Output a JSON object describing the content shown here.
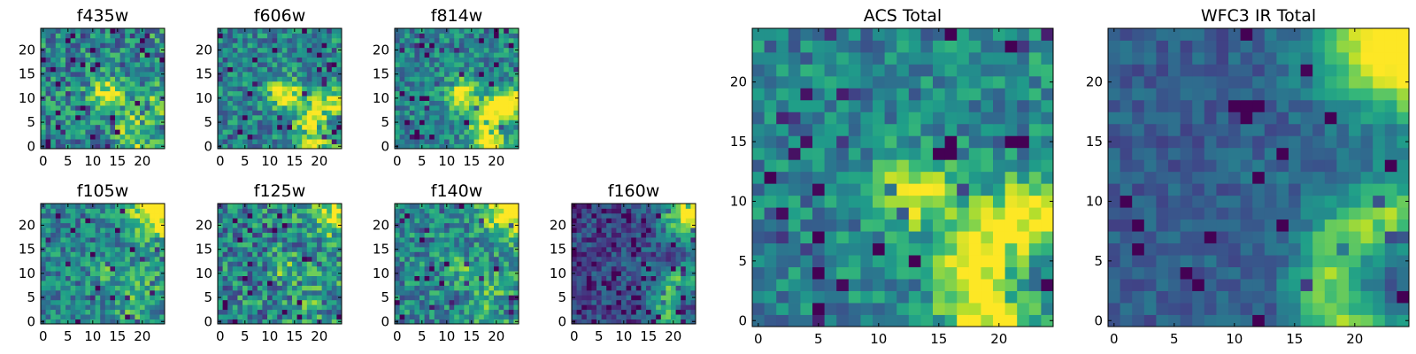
{
  "chart_data": [
    {
      "type": "heatmap",
      "title": "f435w",
      "xlim": [
        0,
        24
      ],
      "ylim": [
        0,
        24
      ],
      "xticks": [
        "0",
        "5",
        "10",
        "15",
        "20"
      ],
      "yticks": [
        "0",
        "5",
        "10",
        "15",
        "20"
      ],
      "colormap": "viridis",
      "seed": 11,
      "features": {
        "ring": 0.35,
        "corner": 0.05,
        "center": 0.55,
        "noise": 0.55,
        "dark": 0.08
      }
    },
    {
      "type": "heatmap",
      "title": "f606w",
      "xlim": [
        0,
        24
      ],
      "ylim": [
        0,
        24
      ],
      "xticks": [
        "0",
        "5",
        "10",
        "15",
        "20"
      ],
      "yticks": [
        "0",
        "5",
        "10",
        "15",
        "20"
      ],
      "colormap": "viridis",
      "seed": 22,
      "features": {
        "ring": 0.5,
        "corner": 0.05,
        "center": 0.6,
        "noise": 0.45,
        "dark": 0.07
      }
    },
    {
      "type": "heatmap",
      "title": "f814w",
      "xlim": [
        0,
        24
      ],
      "ylim": [
        0,
        24
      ],
      "xticks": [
        "0",
        "5",
        "10",
        "15",
        "20"
      ],
      "yticks": [
        "0",
        "5",
        "10",
        "15",
        "20"
      ],
      "colormap": "viridis",
      "seed": 33,
      "features": {
        "ring": 0.65,
        "corner": 0.05,
        "center": 0.55,
        "noise": 0.42,
        "dark": 0.07
      }
    },
    {
      "type": "heatmap",
      "title": "f105w",
      "xlim": [
        0,
        24
      ],
      "ylim": [
        0,
        24
      ],
      "xticks": [
        "0",
        "5",
        "10",
        "15",
        "20"
      ],
      "yticks": [
        "0",
        "5",
        "10",
        "15",
        "20"
      ],
      "colormap": "viridis",
      "seed": 44,
      "features": {
        "ring": 0.2,
        "corner": 0.75,
        "center": 0.2,
        "noise": 0.45,
        "dark": 0.05
      }
    },
    {
      "type": "heatmap",
      "title": "f125w",
      "xlim": [
        0,
        24
      ],
      "ylim": [
        0,
        24
      ],
      "xticks": [
        "0",
        "5",
        "10",
        "15",
        "20"
      ],
      "yticks": [
        "0",
        "5",
        "10",
        "15",
        "20"
      ],
      "colormap": "viridis",
      "seed": 55,
      "features": {
        "ring": 0.15,
        "corner": 0.55,
        "center": 0.25,
        "noise": 0.6,
        "dark": 0.05
      }
    },
    {
      "type": "heatmap",
      "title": "f140w",
      "xlim": [
        0,
        24
      ],
      "ylim": [
        0,
        24
      ],
      "xticks": [
        "0",
        "5",
        "10",
        "15",
        "20"
      ],
      "yticks": [
        "0",
        "5",
        "10",
        "15",
        "20"
      ],
      "colormap": "viridis",
      "seed": 66,
      "features": {
        "ring": 0.2,
        "corner": 0.8,
        "center": 0.2,
        "noise": 0.5,
        "dark": 0.05
      }
    },
    {
      "type": "heatmap",
      "title": "f160w",
      "xlim": [
        0,
        24
      ],
      "ylim": [
        0,
        24
      ],
      "xticks": [
        "0",
        "5",
        "10",
        "15",
        "20"
      ],
      "yticks": [
        "0",
        "5",
        "10",
        "15",
        "20"
      ],
      "colormap": "viridis",
      "seed": 77,
      "features": {
        "ring": 0.45,
        "corner": 0.9,
        "center": 0.1,
        "noise": 0.35,
        "dark": 0.12,
        "base": 0.22
      }
    },
    {
      "type": "heatmap",
      "title": "ACS Total",
      "xlim": [
        0,
        24
      ],
      "ylim": [
        0,
        24
      ],
      "xticks": [
        "0",
        "5",
        "10",
        "15",
        "20"
      ],
      "yticks": [
        "0",
        "5",
        "10",
        "15",
        "20"
      ],
      "colormap": "viridis",
      "seed": 88,
      "features": {
        "ring": 0.6,
        "corner": 0.05,
        "center": 0.55,
        "noise": 0.4,
        "dark": 0.06
      }
    },
    {
      "type": "heatmap",
      "title": "WFC3 IR Total",
      "xlim": [
        0,
        24
      ],
      "ylim": [
        0,
        24
      ],
      "xticks": [
        "0",
        "5",
        "10",
        "15",
        "20"
      ],
      "yticks": [
        "0",
        "5",
        "10",
        "15",
        "20"
      ],
      "colormap": "viridis",
      "seed": 99,
      "features": {
        "ring": 0.5,
        "corner": 0.95,
        "center": 0.05,
        "noise": 0.22,
        "dark": 0.04,
        "base": 0.3
      }
    }
  ]
}
